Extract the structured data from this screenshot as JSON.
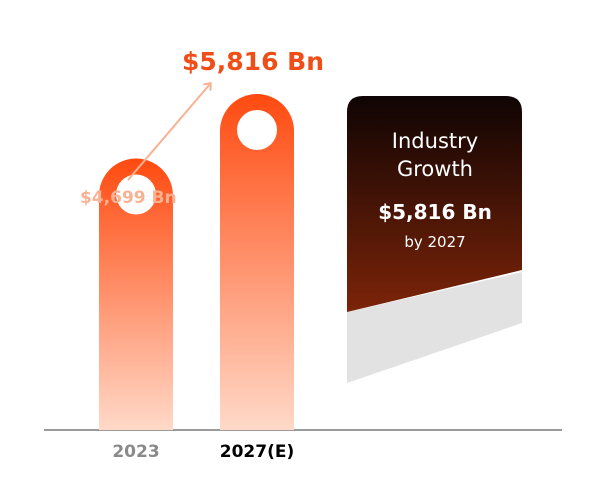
{
  "chart_data": {
    "type": "bar",
    "categories": [
      "2023",
      "2027(E)"
    ],
    "values": [
      4699,
      5816
    ],
    "value_labels": [
      "$4,699 Bn",
      "$5,816 Bn"
    ],
    "unit": "Bn",
    "ylim": [
      0,
      5816
    ],
    "grid": false,
    "legend": "none"
  },
  "card": {
    "title_line1": "Industry",
    "title_line2": "Growth",
    "value": "$5,816 Bn",
    "subtitle": "by 2027"
  },
  "colors": {
    "bar_top": "#ff4a10",
    "bar_bottom": "#ffd9c8",
    "label_faded": "#f9b193",
    "label_accent": "#f04e18",
    "axis": "#7a7a7a",
    "card_top": "#0f0404",
    "card_bottom": "#7c2408",
    "card_shadow": "#e2e2e2"
  }
}
